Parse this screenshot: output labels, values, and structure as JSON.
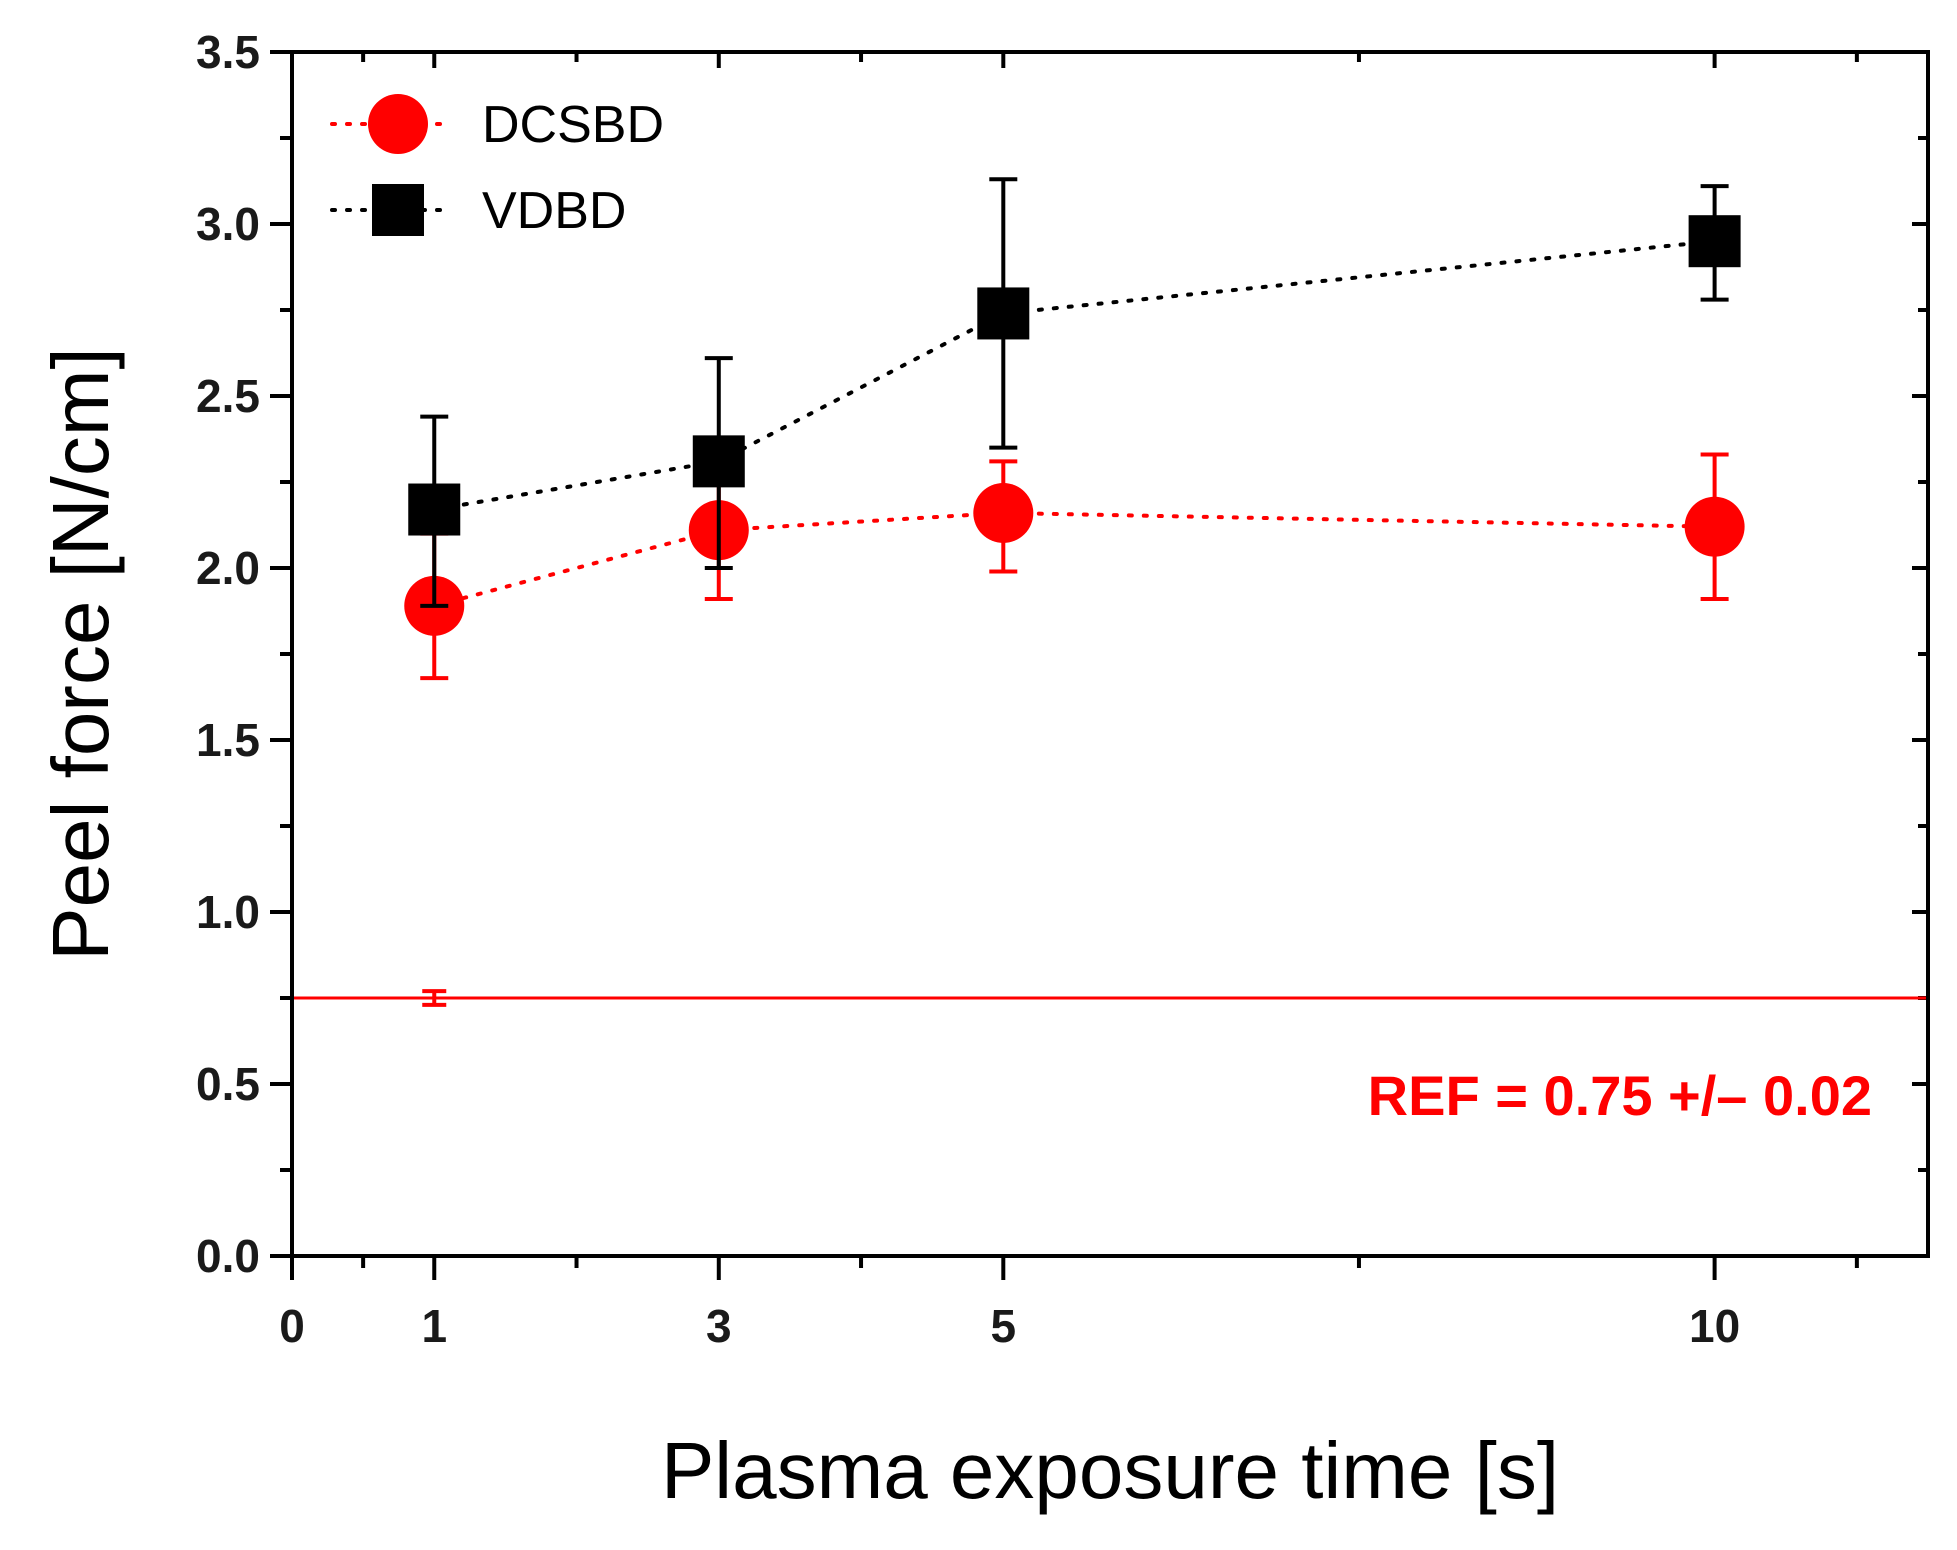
{
  "chart_data": {
    "type": "scatter",
    "title": "",
    "xlabel": "Plasma exposure time [s]",
    "ylabel": "Peel force [N/cm]",
    "xlim": [
      0,
      11.5
    ],
    "ylim": [
      0,
      3.5
    ],
    "x_ticks": [
      0,
      1,
      3,
      5,
      10
    ],
    "x_minor_ticks": [
      0.5,
      2,
      4,
      7.5,
      11
    ],
    "y_ticks": [
      "0.0",
      "0.5",
      "1.0",
      "1.5",
      "2.0",
      "2.5",
      "3.0",
      "3.5"
    ],
    "grid": false,
    "legend_position": "top-left",
    "series": [
      {
        "name": "DCSBD",
        "marker": "circle",
        "color": "#ff0000",
        "line_style": "dotted",
        "x": [
          1,
          3,
          5,
          10
        ],
        "y": [
          1.89,
          2.11,
          2.16,
          2.12
        ],
        "err_upper": [
          2.1,
          2.31,
          2.31,
          2.33
        ],
        "err_lower": [
          1.68,
          1.91,
          1.99,
          1.91
        ]
      },
      {
        "name": "VDBD",
        "marker": "square",
        "color": "#000000",
        "line_style": "dotted",
        "x": [
          1,
          3,
          5,
          10
        ],
        "y": [
          2.17,
          2.31,
          2.74,
          2.95
        ],
        "err_upper": [
          2.44,
          2.61,
          3.13,
          3.11
        ],
        "err_lower": [
          1.89,
          2.0,
          2.35,
          2.78
        ]
      }
    ],
    "reference": {
      "value": 0.75,
      "error": 0.02,
      "err_x": 1,
      "color": "#ff0000",
      "label": "REF = 0.75 +/– 0.02"
    }
  }
}
